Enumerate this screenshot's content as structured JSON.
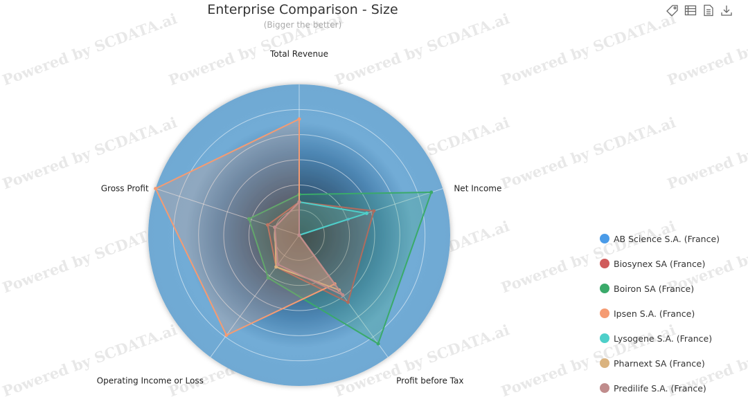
{
  "chart_data": {
    "type": "radar",
    "title": "Enterprise Comparison - Size",
    "subtitle": "(Bigger the better)",
    "indicators": [
      "Total Revenue",
      "Net Income",
      "Profit before Tax",
      "Operating Income or Loss",
      "Gross Profit"
    ],
    "max": 100,
    "series": [
      {
        "name": "AB Science S.A. (France)",
        "color": "#4a9be8",
        "values": [
          0,
          34,
          0,
          0,
          0
        ]
      },
      {
        "name": "Biosynex SA (France)",
        "color": "#d05c5c",
        "values": [
          22,
          52,
          55,
          26,
          22
        ]
      },
      {
        "name": "Boiron SA (France)",
        "color": "#3aaa6a",
        "values": [
          27,
          92,
          89,
          35,
          35
        ]
      },
      {
        "name": "Ipsen S.A. (France)",
        "color": "#f59b72",
        "values": [
          77,
          0,
          40,
          82,
          100
        ]
      },
      {
        "name": "Lysogene S.A. (France)",
        "color": "#4ecfc9",
        "values": [
          22,
          47,
          0,
          0,
          0
        ]
      },
      {
        "name": "Pharnext SA (France)",
        "color": "#dab37f",
        "values": [
          22,
          0,
          45,
          26,
          17
        ]
      },
      {
        "name": "Predilife S.A. (France)",
        "color": "#c08c8c",
        "values": [
          22,
          0,
          49,
          24,
          17
        ]
      }
    ]
  },
  "toolbox": [
    "tag-icon",
    "data-view-icon",
    "document-icon",
    "download-icon"
  ],
  "watermark": "Powered by SCDATA.ai"
}
